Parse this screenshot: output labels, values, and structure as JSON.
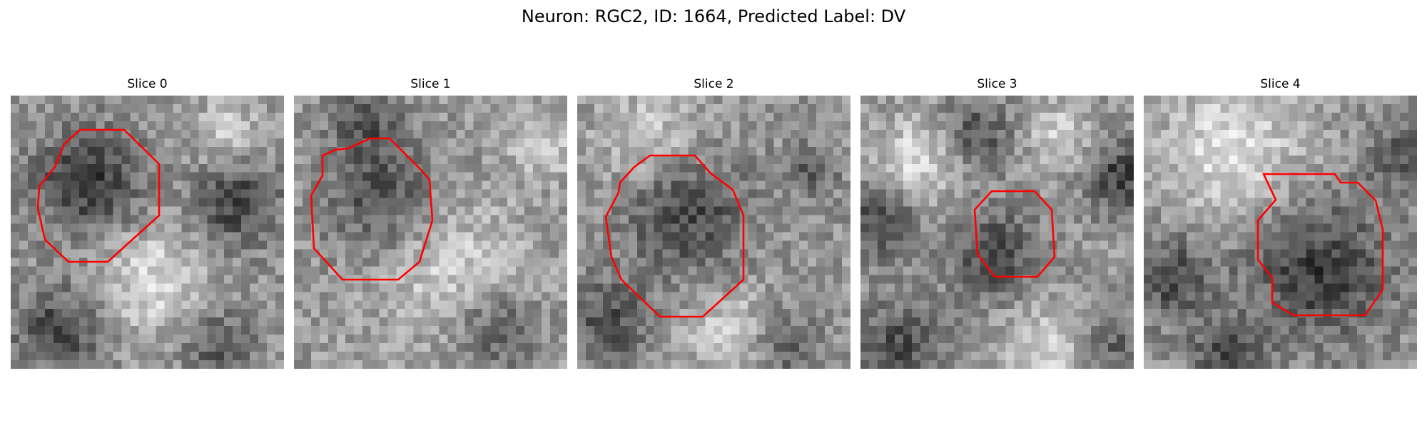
{
  "figure": {
    "title": "Neuron: RGC2, ID: 1664, Predicted Label: DV"
  },
  "panels": [
    {
      "title": "Slice 0"
    },
    {
      "title": "Slice 1"
    },
    {
      "title": "Slice 2"
    },
    {
      "title": "Slice 3"
    },
    {
      "title": "Slice 4"
    }
  ],
  "colors": {
    "contour": "#ff0000"
  }
}
